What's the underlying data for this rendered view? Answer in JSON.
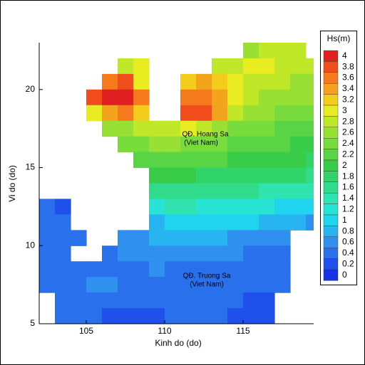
{
  "chart_data": {
    "type": "heatmap",
    "xlabel": "Kinh do (do)",
    "ylabel": "Vi do (do)",
    "x": [
      102.5,
      103.5,
      104.5,
      105.5,
      106.5,
      107.5,
      108.5,
      109.5,
      110.5,
      111.5,
      112.5,
      113.5,
      114.5,
      115.5,
      116.5,
      117.5,
      118.5,
      119.5
    ],
    "y": [
      22.5,
      21.5,
      20.5,
      19.5,
      18.5,
      17.5,
      16.5,
      15.5,
      14.5,
      13.5,
      12.5,
      11.5,
      10.5,
      9.5,
      8.5,
      7.5,
      6.5,
      5.5
    ],
    "z": [
      [
        null,
        null,
        null,
        null,
        null,
        null,
        null,
        null,
        null,
        null,
        null,
        null,
        null,
        2.7,
        2.8,
        2.9,
        2.9,
        null
      ],
      [
        null,
        null,
        null,
        null,
        null,
        2.8,
        3.0,
        null,
        null,
        null,
        null,
        2.8,
        2.9,
        3.0,
        3.0,
        2.9,
        2.8,
        2.8
      ],
      [
        null,
        null,
        null,
        null,
        3.6,
        3.8,
        3.0,
        null,
        null,
        3.2,
        3.4,
        3.2,
        3.0,
        2.9,
        2.8,
        2.8,
        2.7,
        2.7
      ],
      [
        null,
        null,
        null,
        3.8,
        4.0,
        4.0,
        3.6,
        null,
        null,
        3.6,
        3.6,
        3.4,
        3.0,
        2.8,
        2.7,
        2.6,
        2.6,
        2.6
      ],
      [
        null,
        null,
        null,
        3.0,
        3.4,
        3.6,
        3.2,
        null,
        null,
        3.8,
        3.8,
        3.4,
        2.9,
        2.7,
        2.6,
        2.5,
        2.5,
        2.4
      ],
      [
        null,
        null,
        null,
        null,
        2.6,
        2.7,
        2.8,
        2.8,
        2.9,
        3.0,
        2.8,
        2.6,
        2.5,
        2.4,
        2.4,
        2.3,
        2.3,
        2.2
      ],
      [
        null,
        null,
        null,
        null,
        null,
        2.4,
        2.5,
        2.6,
        2.6,
        2.5,
        2.4,
        2.4,
        2.3,
        2.3,
        2.2,
        2.2,
        2.1,
        2.1
      ],
      [
        null,
        null,
        null,
        null,
        null,
        null,
        2.2,
        2.3,
        2.3,
        2.3,
        2.2,
        2.2,
        2.1,
        2.1,
        2.0,
        2.0,
        2.0,
        1.9
      ],
      [
        null,
        null,
        null,
        null,
        null,
        null,
        null,
        2.0,
        2.0,
        2.0,
        1.9,
        1.9,
        1.9,
        1.9,
        1.8,
        1.8,
        1.8,
        1.7
      ],
      [
        null,
        null,
        null,
        null,
        null,
        null,
        null,
        1.6,
        1.7,
        1.7,
        1.7,
        1.6,
        1.6,
        1.6,
        1.5,
        1.5,
        1.4,
        1.4
      ],
      [
        0.4,
        0.3,
        null,
        null,
        null,
        null,
        null,
        1.2,
        1.4,
        1.4,
        1.3,
        1.3,
        1.3,
        1.2,
        1.2,
        1.1,
        1.1,
        1.0
      ],
      [
        0.4,
        0.4,
        null,
        null,
        null,
        null,
        null,
        0.9,
        1.0,
        1.1,
        1.1,
        1.0,
        1.0,
        1.0,
        0.9,
        0.9,
        0.8,
        0.7
      ],
      [
        0.5,
        0.5,
        0.5,
        null,
        null,
        0.6,
        0.7,
        0.8,
        0.8,
        0.8,
        0.8,
        0.8,
        0.7,
        0.7,
        0.6,
        0.6,
        null,
        null
      ],
      [
        0.5,
        0.5,
        null,
        null,
        0.5,
        0.6,
        0.6,
        0.7,
        0.6,
        0.6,
        0.6,
        0.6,
        0.6,
        0.5,
        0.5,
        0.5,
        null,
        null
      ],
      [
        0.5,
        0.5,
        0.5,
        0.5,
        0.5,
        0.5,
        0.5,
        0.6,
        0.5,
        0.5,
        0.5,
        0.5,
        0.5,
        0.5,
        0.4,
        0.4,
        null,
        null
      ],
      [
        0.5,
        0.5,
        0.5,
        0.6,
        0.6,
        0.5,
        0.5,
        0.5,
        0.5,
        0.5,
        0.5,
        0.5,
        0.4,
        0.4,
        0.4,
        0.4,
        null,
        null
      ],
      [
        null,
        0.5,
        0.5,
        0.5,
        0.5,
        0.5,
        0.4,
        0.4,
        0.4,
        0.5,
        0.5,
        0.5,
        0.4,
        0.3,
        0.3,
        null,
        null,
        null
      ],
      [
        null,
        0.4,
        0.4,
        0.4,
        0.3,
        0.2,
        0.2,
        0.2,
        0.4,
        0.4,
        0.4,
        0.4,
        0.3,
        0.3,
        0.3,
        null,
        null,
        null
      ]
    ],
    "xlim": [
      102,
      119.5
    ],
    "ylim": [
      5,
      23
    ],
    "xticks": [
      105,
      110,
      115
    ],
    "yticks": [
      5,
      10,
      15,
      20
    ],
    "colorbar": {
      "title": "Hs(m)",
      "levels": [
        4,
        3.8,
        3.6,
        3.4,
        3.2,
        3,
        2.8,
        2.6,
        2.4,
        2.2,
        2,
        1.8,
        1.6,
        1.4,
        1.2,
        1,
        0.8,
        0.6,
        0.4,
        0.2,
        0
      ],
      "colors": [
        "#e02020",
        "#f04c1c",
        "#f47a1c",
        "#f4a41c",
        "#f4cc1c",
        "#e8ec20",
        "#c0e828",
        "#98e034",
        "#78dc3c",
        "#58d444",
        "#38cc48",
        "#30d468",
        "#30dc8c",
        "#30e4b0",
        "#28e4d4",
        "#20d4f0",
        "#28b4f0",
        "#3090f0",
        "#2870ec",
        "#2050ec",
        "#1830e8"
      ]
    },
    "annotations": [
      "QĐ. Hoang Sa",
      "(Viet Nam)",
      "QĐ. Truong Sa",
      "(Viet Nam)"
    ]
  }
}
